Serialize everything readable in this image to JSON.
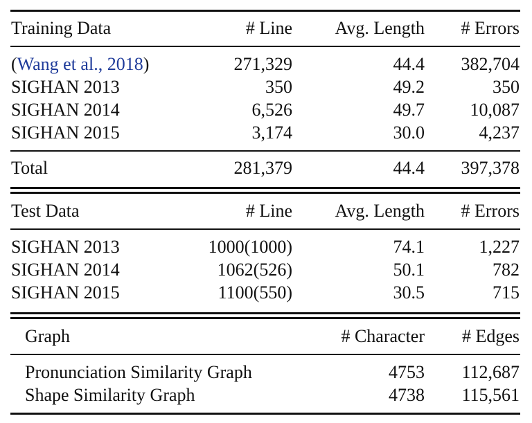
{
  "training": {
    "header": {
      "col1": "Training Data",
      "col2": "# Line",
      "col3": "Avg. Length",
      "col4": "# Errors"
    },
    "rows": [
      {
        "name_prefix": "(",
        "name_cite": "Wang et al., 2018",
        "name_suffix": ")",
        "lines": "271,329",
        "avg": "44.4",
        "errors": "382,704"
      },
      {
        "name": "SIGHAN 2013",
        "lines": "350",
        "avg": "49.2",
        "errors": "350"
      },
      {
        "name": "SIGHAN 2014",
        "lines": "6,526",
        "avg": "49.7",
        "errors": "10,087"
      },
      {
        "name": "SIGHAN 2015",
        "lines": "3,174",
        "avg": "30.0",
        "errors": "4,237"
      }
    ],
    "total": {
      "name": "Total",
      "lines": "281,379",
      "avg": "44.4",
      "errors": "397,378"
    }
  },
  "test": {
    "header": {
      "col1": "Test Data",
      "col2": "# Line",
      "col3": "Avg. Length",
      "col4": "# Errors"
    },
    "rows": [
      {
        "name": "SIGHAN 2013",
        "lines": "1000(1000)",
        "avg": "74.1",
        "errors": "1,227"
      },
      {
        "name": "SIGHAN 2014",
        "lines": "1062(526)",
        "avg": "50.1",
        "errors": "782"
      },
      {
        "name": "SIGHAN 2015",
        "lines": "1100(550)",
        "avg": "30.5",
        "errors": "715"
      }
    ]
  },
  "graph": {
    "header": {
      "col1": "Graph",
      "col3": "# Character",
      "col4": "# Edges"
    },
    "rows": [
      {
        "name": "Pronunciation Similarity Graph",
        "chars": "4753",
        "edges": "112,687"
      },
      {
        "name": "Shape Similarity Graph",
        "chars": "4738",
        "edges": "115,561"
      }
    ]
  }
}
